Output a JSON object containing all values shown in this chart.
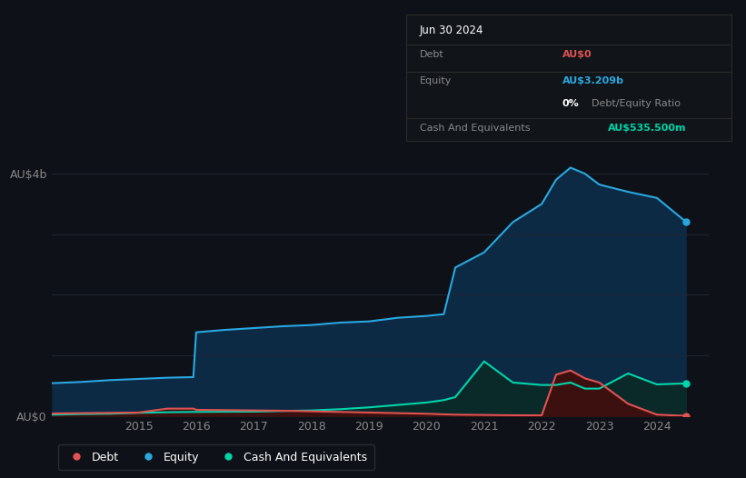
{
  "bg_color": "#0e1117",
  "plot_bg_color": "#0e1117",
  "grid_color": "#1e2535",
  "equity_color": "#29a8e0",
  "debt_color": "#e05252",
  "cash_color": "#00d4aa",
  "equity_fill": "#0d2a45",
  "debt_fill": "#3d1010",
  "cash_fill": "#0a2a2a",
  "ylim_max": 4500000000,
  "yticks": [
    0,
    1000000000,
    2000000000,
    3000000000,
    4000000000
  ],
  "ytick_labels": [
    "AU$0",
    "",
    "",
    "",
    "AU$4b"
  ],
  "legend_labels": [
    "Debt",
    "Equity",
    "Cash And Equivalents"
  ],
  "legend_colors": [
    "#e05252",
    "#29a8e0",
    "#00d4aa"
  ],
  "dates": [
    2013.5,
    2014.0,
    2014.5,
    2015.0,
    2015.5,
    2015.95,
    2016.0,
    2016.5,
    2017.0,
    2017.5,
    2018.0,
    2018.5,
    2019.0,
    2019.5,
    2020.0,
    2020.3,
    2020.5,
    2021.0,
    2021.5,
    2022.0,
    2022.25,
    2022.5,
    2022.75,
    2023.0,
    2023.5,
    2024.0,
    2024.5
  ],
  "equity": [
    540000000,
    560000000,
    590000000,
    610000000,
    630000000,
    640000000,
    1380000000,
    1420000000,
    1450000000,
    1480000000,
    1500000000,
    1540000000,
    1560000000,
    1620000000,
    1650000000,
    1680000000,
    2450000000,
    2700000000,
    3200000000,
    3500000000,
    3900000000,
    4100000000,
    4000000000,
    3820000000,
    3700000000,
    3600000000,
    3209000000
  ],
  "debt": [
    40000000,
    45000000,
    50000000,
    55000000,
    120000000,
    120000000,
    100000000,
    95000000,
    90000000,
    85000000,
    75000000,
    65000000,
    55000000,
    45000000,
    35000000,
    25000000,
    20000000,
    15000000,
    10000000,
    8000000,
    680000000,
    750000000,
    620000000,
    550000000,
    200000000,
    20000000,
    0
  ],
  "cash": [
    20000000,
    30000000,
    35000000,
    50000000,
    60000000,
    65000000,
    65000000,
    68000000,
    70000000,
    80000000,
    90000000,
    110000000,
    140000000,
    180000000,
    220000000,
    260000000,
    310000000,
    900000000,
    550000000,
    510000000,
    510000000,
    550000000,
    450000000,
    450000000,
    700000000,
    520000000,
    535500000
  ],
  "xticks": [
    2015,
    2016,
    2017,
    2018,
    2019,
    2020,
    2021,
    2022,
    2023,
    2024
  ],
  "xtick_labels": [
    "2015",
    "2016",
    "2017",
    "2018",
    "2019",
    "2020",
    "2021",
    "2022",
    "2023",
    "2024"
  ]
}
